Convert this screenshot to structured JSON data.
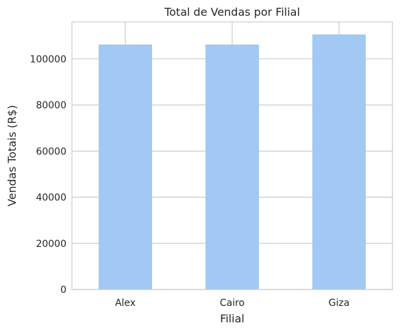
{
  "chart_data": {
    "type": "bar",
    "title": "Total de Vendas por Filial",
    "xlabel": "Filial",
    "ylabel": "Vendas Totais (R$)",
    "categories": [
      "Alex",
      "Cairo",
      "Giza"
    ],
    "values": [
      106200,
      106200,
      110570
    ],
    "ylim": [
      0,
      116000
    ],
    "yticks": [
      0,
      20000,
      40000,
      60000,
      80000,
      100000
    ],
    "grid": true,
    "legend": "none",
    "colors": {
      "bar": "#a1c9f4",
      "grid": "#cccccc",
      "spine": "#cccccc",
      "text": "#262626",
      "background": "#ffffff"
    }
  }
}
